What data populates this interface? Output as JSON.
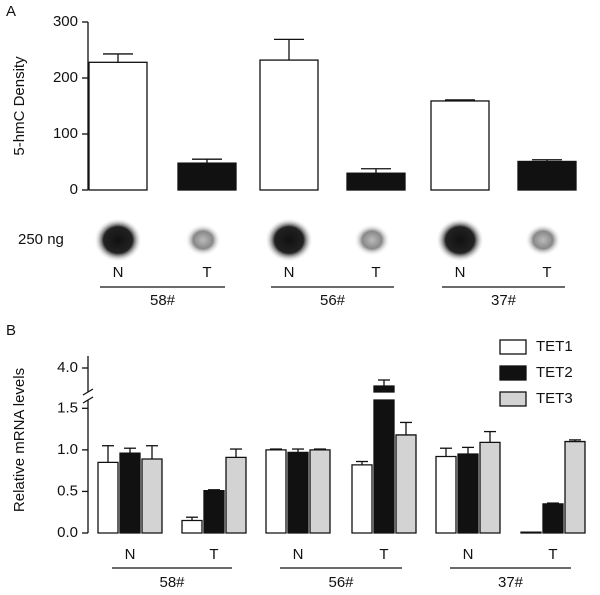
{
  "chart_data": [
    {
      "type": "bar",
      "panel": "A",
      "ylabel": "5-hmC Density",
      "sample_label": "250 ng",
      "categories": [
        "N",
        "T",
        "N",
        "T",
        "N",
        "T"
      ],
      "groups": [
        "58#",
        "56#",
        "37#"
      ],
      "values": [
        228,
        48,
        232,
        30,
        159,
        51
      ],
      "errors": [
        15,
        7,
        37,
        8,
        2,
        3
      ],
      "colors": [
        "#ffffff",
        "#111111",
        "#ffffff",
        "#111111",
        "#ffffff",
        "#111111"
      ],
      "ylim": [
        0,
        300
      ],
      "yticks": [
        0,
        100,
        200,
        300
      ]
    },
    {
      "type": "grouped_bar",
      "panel": "B",
      "ylabel": "Relative mRNA levels",
      "categories": [
        "N",
        "T",
        "N",
        "T",
        "N",
        "T"
      ],
      "groups": [
        "58#",
        "56#",
        "37#"
      ],
      "series": [
        {
          "name": "TET1",
          "color": "#ffffff",
          "values": [
            0.85,
            0.15,
            1.0,
            0.82,
            0.92,
            0.01
          ],
          "errors": [
            0.2,
            0.04,
            0.01,
            0.04,
            0.1,
            0
          ]
        },
        {
          "name": "TET2",
          "color": "#111111",
          "values": [
            0.96,
            0.51,
            0.97,
            3.85,
            0.95,
            0.35
          ],
          "errors": [
            0.06,
            0.01,
            0.04,
            0.05,
            0.08,
            0.01
          ]
        },
        {
          "name": "TET3",
          "color": "#d3d3d3",
          "values": [
            0.89,
            0.91,
            1.0,
            1.18,
            1.09,
            1.1
          ],
          "errors": [
            0.16,
            0.1,
            0.01,
            0.15,
            0.13,
            0.02
          ]
        }
      ],
      "ylim": [
        0,
        4.1
      ],
      "ybreak": [
        1.6,
        3.8
      ],
      "yticks": [
        {
          "value": 0,
          "label": "0.0"
        },
        {
          "value": 0.5,
          "label": "0.5"
        },
        {
          "value": 1,
          "label": "1.0"
        },
        {
          "value": 1.5,
          "label": "1.5"
        },
        {
          "value": 4,
          "label": "4.0"
        }
      ],
      "legend": "top-right"
    }
  ]
}
